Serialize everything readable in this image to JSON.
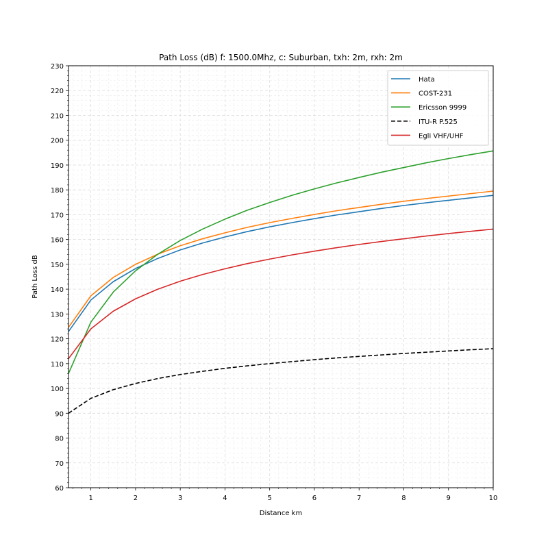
{
  "chart_data": {
    "type": "line",
    "title": "Path Loss (dB) f: 1500.0Mhz, c: Suburban, txh: 2m, rxh: 2m",
    "xlabel": "Distance km",
    "ylabel": "Path Loss dB",
    "xlim": [
      0.5,
      10
    ],
    "ylim": [
      60,
      230
    ],
    "xticks": [
      1,
      2,
      3,
      4,
      5,
      6,
      7,
      8,
      9,
      10
    ],
    "yticks": [
      60,
      70,
      80,
      90,
      100,
      110,
      120,
      130,
      140,
      150,
      160,
      170,
      180,
      190,
      200,
      210,
      220,
      230
    ],
    "grid": true,
    "minor_grid": true,
    "legend_position": "top-right",
    "x": [
      0.5,
      1,
      1.5,
      2,
      2.5,
      3,
      3.5,
      4,
      4.5,
      5,
      5.5,
      6,
      6.5,
      7,
      7.5,
      8,
      8.5,
      9,
      9.5,
      10
    ],
    "series": [
      {
        "name": "Hata",
        "color": "#1f77b4",
        "dash": "solid",
        "values": [
          122.9,
          135.6,
          143.0,
          148.3,
          152.4,
          155.8,
          158.6,
          161.0,
          163.2,
          165.1,
          166.8,
          168.4,
          169.9,
          171.2,
          172.5,
          173.7,
          174.8,
          175.8,
          176.8,
          177.8
        ]
      },
      {
        "name": "COST-231",
        "color": "#ff7f0e",
        "dash": "solid",
        "values": [
          124.6,
          137.3,
          144.7,
          150.0,
          154.1,
          157.5,
          160.3,
          162.7,
          164.9,
          166.8,
          168.5,
          170.1,
          171.6,
          172.9,
          174.2,
          175.4,
          176.5,
          177.5,
          178.5,
          179.5
        ]
      },
      {
        "name": "Ericsson 9999",
        "color": "#2ca02c",
        "dash": "solid",
        "values": [
          106.0,
          126.7,
          138.8,
          147.4,
          154.1,
          159.6,
          164.2,
          168.2,
          171.8,
          174.9,
          177.8,
          180.4,
          182.8,
          185.0,
          187.1,
          189.0,
          190.9,
          192.6,
          194.2,
          195.7
        ]
      },
      {
        "name": "ITU-R P.525",
        "color": "#000000",
        "dash": "dashed",
        "values": [
          90.0,
          96.0,
          99.5,
          102.0,
          104.0,
          105.6,
          106.9,
          108.1,
          109.1,
          110.0,
          110.8,
          111.6,
          112.3,
          112.9,
          113.5,
          114.1,
          114.6,
          115.1,
          115.6,
          116.0
        ]
      },
      {
        "name": "Egli VHF/UHF",
        "color": "#d62728",
        "dash": "solid",
        "values": [
          112.0,
          124.0,
          131.1,
          136.1,
          140.0,
          143.2,
          145.9,
          148.2,
          150.3,
          152.1,
          153.8,
          155.3,
          156.7,
          158.0,
          159.2,
          160.3,
          161.4,
          162.4,
          163.3,
          164.2
        ]
      }
    ]
  }
}
